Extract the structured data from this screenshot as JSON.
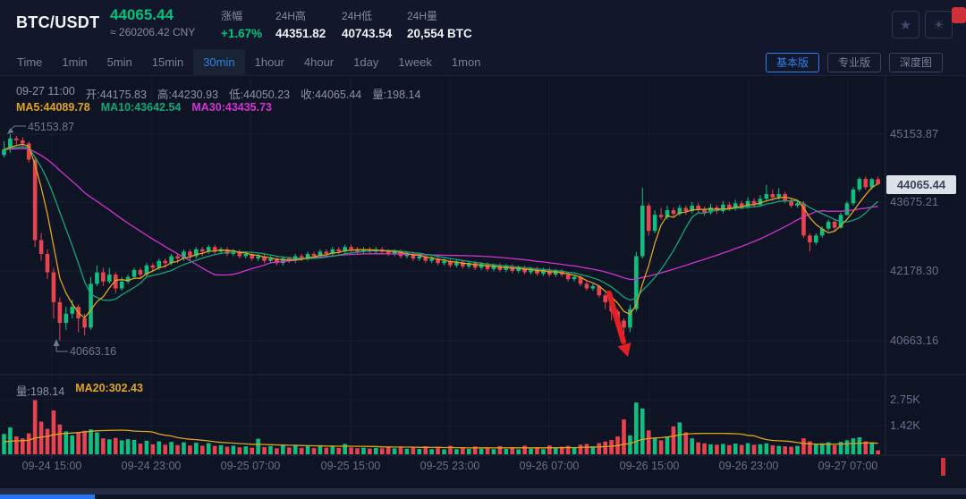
{
  "header": {
    "symbol": "BTC/USDT",
    "last_price": "44065.44",
    "approx_cny": "≈ 260206.42 CNY",
    "change_label": "涨幅",
    "change_value": "+1.67%",
    "high_label": "24H高",
    "high_value": "44351.82",
    "low_label": "24H低",
    "low_value": "40743.54",
    "volume_label": "24H量",
    "volume_value": "20,554 BTC"
  },
  "icons": {
    "star_glyph": "★",
    "sun_glyph": "☀"
  },
  "toolbar": {
    "intervals": [
      "Time",
      "1min",
      "5min",
      "15min",
      "30min",
      "1hour",
      "4hour",
      "1day",
      "1week",
      "1mon"
    ],
    "active_interval": "30min",
    "view_buttons": [
      "基本版",
      "专业版",
      "深度图"
    ],
    "active_view": "基本版"
  },
  "info_bar": {
    "datetime": "09-27 11:00",
    "open": "开:44175.83",
    "high": "高:44230.93",
    "low": "低:44050.23",
    "close": "收:44065.44",
    "volume": "量:198.14",
    "ma5": "MA5:44089.78",
    "ma10": "MA10:43642.54",
    "ma30": "MA30:43435.73"
  },
  "volume_bar": {
    "vol": "量:198.14",
    "ma20": "MA20:302.43"
  },
  "annotations": {
    "chart_high": "45153.87",
    "chart_low": "40663.16"
  },
  "price_axis": {
    "labels": [
      {
        "label": "45153.87",
        "price": 45153.87
      },
      {
        "label": "43675.21",
        "price": 43675.21
      },
      {
        "label": "42178.30",
        "price": 42178.3
      },
      {
        "label": "40663.16",
        "price": 40663.16
      }
    ],
    "current": {
      "label": "44065.44",
      "price": 44065.44
    }
  },
  "volume_axis": [
    {
      "label": "2.75K",
      "value": 2750
    },
    {
      "label": "1.42K",
      "value": 1420
    }
  ],
  "time_axis": [
    "09-24 15:00",
    "09-24 23:00",
    "09-25 07:00",
    "09-25 15:00",
    "09-25 23:00",
    "09-26 07:00",
    "09-26 15:00",
    "09-26 23:00",
    "09-27 07:00"
  ],
  "colors": {
    "up": "#0fbf7f",
    "down": "#e8434f",
    "text_green": "#00c17a",
    "ma5": "#dfa41c",
    "ma10": "#10a678",
    "ma30": "#d232d2",
    "accent": "#2e80e8",
    "arrow": "#e42026",
    "tag_bg": "#dde1ea"
  },
  "chart_data": {
    "type": "candlestick+volume",
    "symbol": "BTC/USDT",
    "interval": "30min",
    "price_gridlines": [
      45153.87,
      43675.21,
      42178.3,
      40663.16
    ],
    "volume_gridlines": [
      2750,
      1420
    ],
    "current_price": 44065.44,
    "candles_format": [
      "open",
      "high",
      "low",
      "close",
      "volume"
    ],
    "candles": [
      [
        44700,
        45000,
        44650,
        44820,
        1020
      ],
      [
        44820,
        45153.87,
        44750,
        45060,
        1350
      ],
      [
        45060,
        45120,
        44930,
        45020,
        900
      ],
      [
        45020,
        45090,
        44870,
        44950,
        800
      ],
      [
        44950,
        44990,
        44540,
        44600,
        1050
      ],
      [
        44600,
        44640,
        42700,
        42850,
        2720
      ],
      [
        42850,
        43000,
        42400,
        42550,
        1640
      ],
      [
        42550,
        42650,
        42000,
        42150,
        1280
      ],
      [
        42150,
        42250,
        41150,
        41500,
        2200
      ],
      [
        41500,
        41600,
        40663.16,
        41050,
        1500
      ],
      [
        41050,
        41400,
        40900,
        41250,
        1150
      ],
      [
        41250,
        41550,
        41150,
        41400,
        950
      ],
      [
        41400,
        41450,
        40850,
        41150,
        1100
      ],
      [
        41150,
        41250,
        40780,
        40950,
        1180
      ],
      [
        40950,
        42050,
        40900,
        41900,
        1250
      ],
      [
        41900,
        42300,
        41850,
        42150,
        1100
      ],
      [
        42150,
        42250,
        41850,
        41950,
        800
      ],
      [
        41950,
        42250,
        41900,
        42100,
        750
      ],
      [
        42100,
        42150,
        41700,
        41800,
        820
      ],
      [
        41800,
        42050,
        41750,
        41950,
        700
      ],
      [
        41950,
        42100,
        41900,
        42050,
        760
      ],
      [
        42050,
        42250,
        42000,
        42200,
        720
      ],
      [
        42200,
        42250,
        42000,
        42100,
        540
      ],
      [
        42100,
        42350,
        42050,
        42300,
        680
      ],
      [
        42300,
        42350,
        42150,
        42250,
        500
      ],
      [
        42250,
        42450,
        42200,
        42400,
        650
      ],
      [
        42400,
        42450,
        42250,
        42350,
        480
      ],
      [
        42350,
        42550,
        42300,
        42500,
        620
      ],
      [
        42500,
        42550,
        42350,
        42450,
        460
      ],
      [
        42450,
        42650,
        42400,
        42600,
        600
      ],
      [
        42600,
        42650,
        42400,
        42500,
        440
      ],
      [
        42500,
        42700,
        42450,
        42650,
        580
      ],
      [
        42650,
        42700,
        42500,
        42600,
        430
      ],
      [
        42600,
        42750,
        42550,
        42700,
        560
      ],
      [
        42700,
        42750,
        42550,
        42600,
        420
      ],
      [
        42600,
        42700,
        42550,
        42650,
        460
      ],
      [
        42650,
        42700,
        42500,
        42550,
        380
      ],
      [
        42550,
        42650,
        42500,
        42600,
        430
      ],
      [
        42600,
        42650,
        42450,
        42500,
        350
      ],
      [
        42500,
        42600,
        42450,
        42550,
        400
      ],
      [
        42550,
        42600,
        42400,
        42450,
        330
      ],
      [
        42450,
        42550,
        42400,
        42500,
        780
      ],
      [
        42500,
        42550,
        42350,
        42400,
        360
      ],
      [
        42400,
        42500,
        42350,
        42450,
        410
      ],
      [
        42450,
        42500,
        42300,
        42350,
        300
      ],
      [
        42350,
        42500,
        42300,
        42450,
        450
      ],
      [
        42450,
        42500,
        42350,
        42400,
        340
      ],
      [
        42400,
        42550,
        42350,
        42500,
        480
      ],
      [
        42500,
        42550,
        42400,
        42450,
        320
      ],
      [
        42450,
        42600,
        42400,
        42550,
        430
      ],
      [
        42550,
        42600,
        42450,
        42500,
        310
      ],
      [
        42500,
        42650,
        42450,
        42600,
        460
      ],
      [
        42600,
        42650,
        42500,
        42550,
        330
      ],
      [
        42550,
        42700,
        42500,
        42650,
        440
      ],
      [
        42650,
        42700,
        42550,
        42600,
        320
      ],
      [
        42600,
        42750,
        42550,
        42700,
        520
      ],
      [
        42700,
        42750,
        42600,
        42650,
        340
      ],
      [
        42650,
        42700,
        42550,
        42600,
        300
      ],
      [
        42600,
        42700,
        42550,
        42650,
        330
      ],
      [
        42650,
        42700,
        42550,
        42600,
        290
      ],
      [
        42600,
        42700,
        42550,
        42650,
        320
      ],
      [
        42650,
        42700,
        42550,
        42600,
        300
      ],
      [
        42600,
        42650,
        42500,
        42550,
        350
      ],
      [
        42550,
        42650,
        42500,
        42600,
        300
      ],
      [
        42600,
        42650,
        42450,
        42500,
        380
      ],
      [
        42500,
        42600,
        42450,
        42550,
        280
      ],
      [
        42550,
        42600,
        42400,
        42450,
        360
      ],
      [
        42450,
        42550,
        42400,
        42500,
        270
      ],
      [
        42500,
        42550,
        42350,
        42400,
        400
      ],
      [
        42400,
        42500,
        42350,
        42450,
        260
      ],
      [
        42450,
        42500,
        42300,
        42350,
        380
      ],
      [
        42350,
        42450,
        42300,
        42400,
        250
      ],
      [
        42400,
        42450,
        42250,
        42300,
        420
      ],
      [
        42300,
        42430,
        42250,
        42380,
        260
      ],
      [
        42380,
        42420,
        42230,
        42280,
        350
      ],
      [
        42280,
        42400,
        42230,
        42350,
        270
      ],
      [
        42350,
        42400,
        42200,
        42250,
        390
      ],
      [
        42250,
        42370,
        42200,
        42320,
        280
      ],
      [
        42320,
        42370,
        42170,
        42220,
        330
      ],
      [
        42220,
        42350,
        42170,
        42300,
        260
      ],
      [
        42300,
        42350,
        42150,
        42200,
        410
      ],
      [
        42200,
        42330,
        42150,
        42280,
        270
      ],
      [
        42280,
        42330,
        42130,
        42180,
        360
      ],
      [
        42180,
        42300,
        42130,
        42250,
        250
      ],
      [
        42250,
        42300,
        42100,
        42150,
        430
      ],
      [
        42150,
        42270,
        42100,
        42220,
        280
      ],
      [
        42220,
        42270,
        42070,
        42120,
        350
      ],
      [
        42120,
        42250,
        42070,
        42200,
        260
      ],
      [
        42200,
        42250,
        42050,
        42100,
        440
      ],
      [
        42100,
        42230,
        42050,
        42180,
        300
      ],
      [
        42180,
        42220,
        42050,
        42100,
        380
      ],
      [
        42100,
        42150,
        41950,
        42000,
        420
      ],
      [
        42000,
        42100,
        41950,
        42050,
        350
      ],
      [
        42050,
        42080,
        41850,
        41900,
        480
      ],
      [
        41900,
        41950,
        41750,
        41800,
        520
      ],
      [
        41800,
        41900,
        41750,
        41850,
        400
      ],
      [
        41850,
        41880,
        41600,
        41650,
        560
      ],
      [
        41650,
        41700,
        41350,
        41500,
        640
      ],
      [
        41500,
        41550,
        41100,
        41300,
        720
      ],
      [
        41300,
        41350,
        40900,
        41100,
        900
      ],
      [
        41100,
        41150,
        40743.54,
        40950,
        1750
      ],
      [
        40950,
        41450,
        40850,
        41350,
        950
      ],
      [
        41350,
        42600,
        41300,
        42500,
        2600
      ],
      [
        42500,
        43990,
        42450,
        43600,
        2300
      ],
      [
        43600,
        43650,
        42950,
        43050,
        1200
      ],
      [
        43050,
        43500,
        43000,
        43400,
        800
      ],
      [
        43400,
        43550,
        43300,
        43350,
        700
      ],
      [
        43350,
        43600,
        43300,
        43500,
        900
      ],
      [
        43500,
        43560,
        43350,
        43420,
        1400
      ],
      [
        43420,
        43620,
        43380,
        43550,
        1600
      ],
      [
        43550,
        43600,
        43400,
        43480,
        1100
      ],
      [
        43480,
        43680,
        43430,
        43600,
        800
      ],
      [
        43600,
        43660,
        43450,
        43520,
        600
      ],
      [
        43520,
        43580,
        43380,
        43450,
        550
      ],
      [
        43450,
        43640,
        43400,
        43560,
        500
      ],
      [
        43560,
        43620,
        43420,
        43480,
        480
      ],
      [
        43480,
        43700,
        43430,
        43620,
        520
      ],
      [
        43620,
        43680,
        43480,
        43540,
        460
      ],
      [
        43540,
        43730,
        43490,
        43650,
        540
      ],
      [
        43650,
        43710,
        43520,
        43580,
        470
      ],
      [
        43580,
        43780,
        43530,
        43700,
        560
      ],
      [
        43700,
        43760,
        43560,
        43620,
        480
      ],
      [
        43620,
        43830,
        43570,
        43750,
        500
      ],
      [
        43750,
        44050,
        43700,
        43850,
        550
      ],
      [
        43850,
        43950,
        43700,
        43780,
        450
      ],
      [
        43780,
        43980,
        43730,
        43850,
        420
      ],
      [
        43850,
        43900,
        43650,
        43700,
        400
      ],
      [
        43700,
        43750,
        43550,
        43600,
        380
      ],
      [
        43600,
        43720,
        43550,
        43650,
        420
      ],
      [
        43650,
        43700,
        42900,
        42950,
        800
      ],
      [
        42950,
        43000,
        42600,
        42800,
        650
      ],
      [
        42800,
        43000,
        42750,
        42950,
        500
      ],
      [
        42950,
        43150,
        42900,
        43100,
        550
      ],
      [
        43100,
        43300,
        43050,
        43250,
        600
      ],
      [
        43250,
        43280,
        43050,
        43120,
        450
      ],
      [
        43120,
        43450,
        43100,
        43400,
        620
      ],
      [
        43400,
        43700,
        43380,
        43650,
        700
      ],
      [
        43650,
        44000,
        43600,
        43950,
        800
      ],
      [
        43950,
        44220,
        43900,
        44180,
        850
      ],
      [
        44180,
        44230,
        43950,
        44000,
        650
      ],
      [
        44000,
        44200,
        43950,
        44175,
        600
      ],
      [
        44175.83,
        44230.93,
        44050.23,
        44065.44,
        198
      ]
    ],
    "ma_periods": {
      "price": [
        5,
        10,
        30
      ],
      "volume": [
        20
      ]
    }
  }
}
